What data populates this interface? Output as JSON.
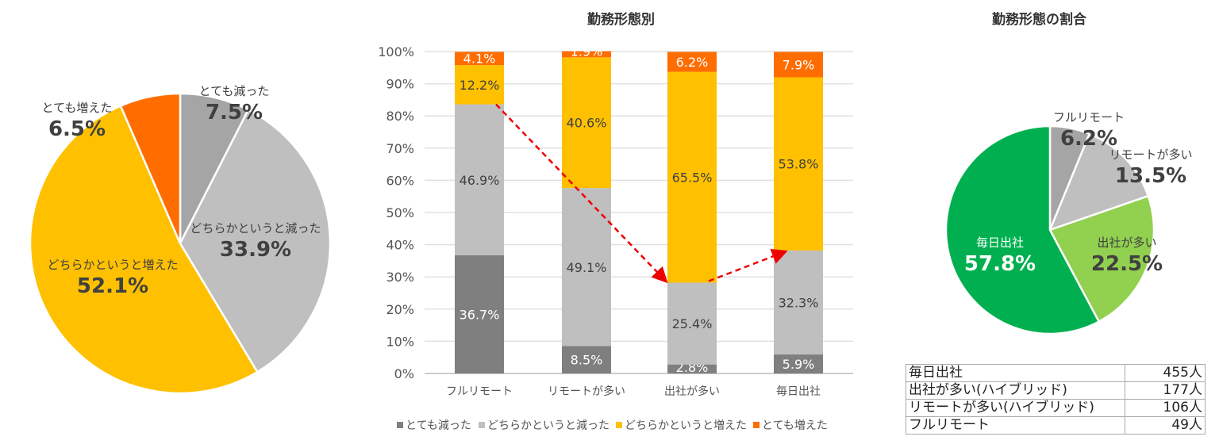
{
  "chart_data": [
    {
      "type": "pie",
      "title": "",
      "labels": [
        "とても減った",
        "どちらかというと減った",
        "どちらかというと増えた",
        "とても増えた"
      ],
      "values": [
        7.5,
        33.9,
        52.1,
        6.5
      ],
      "value_labels": [
        "7.5%",
        "33.9%",
        "52.1%",
        "6.5%"
      ],
      "colors": [
        "#a5a5a5",
        "#bfbfbf",
        "#ffc000",
        "#ff6d01"
      ]
    },
    {
      "type": "bar",
      "stacked": true,
      "title": "勤務形態別",
      "categories": [
        "フルリモート",
        "リモートが多い",
        "出社が多い",
        "毎日出社"
      ],
      "ylim": [
        0,
        100
      ],
      "yticks": [
        "0%",
        "10%",
        "20%",
        "30%",
        "40%",
        "50%",
        "60%",
        "70%",
        "80%",
        "90%",
        "100%"
      ],
      "legend_position": "bottom",
      "series": [
        {
          "name": "とても減った",
          "color": "#7f7f7f",
          "label_color": "#ffffff",
          "values": [
            36.7,
            8.5,
            2.8,
            5.9
          ]
        },
        {
          "name": "どちらかというと減った",
          "color": "#bfbfbf",
          "label_color": "#404040",
          "values": [
            46.9,
            49.1,
            25.4,
            32.3
          ]
        },
        {
          "name": "どちらかというと増えた",
          "color": "#ffc000",
          "label_color": "#404040",
          "values": [
            12.2,
            40.6,
            65.5,
            53.8
          ]
        },
        {
          "name": "とても増えた",
          "color": "#ff6d01",
          "label_color": "#ffffff",
          "values": [
            4.1,
            1.9,
            6.2,
            7.9
          ]
        }
      ],
      "annotation": "red dashed arrows connecting tops of the 減った segments"
    },
    {
      "type": "pie",
      "title": "勤務形態の割合",
      "labels": [
        "フルリモート",
        "リモートが多い",
        "出社が多い",
        "毎日出社"
      ],
      "values": [
        6.2,
        13.5,
        22.5,
        57.8
      ],
      "value_labels": [
        "6.2%",
        "13.5%",
        "22.5%",
        "57.8%"
      ],
      "colors": [
        "#a5a5a5",
        "#bfbfbf",
        "#92d050",
        "#00b050"
      ]
    }
  ],
  "table": {
    "rows": [
      {
        "label": "毎日出社",
        "count": "455人"
      },
      {
        "label": "出社が多い(ハイブリッド)",
        "count": "177人"
      },
      {
        "label": "リモートが多い(ハイブリッド)",
        "count": "106人"
      },
      {
        "label": "フルリモート",
        "count": "49人"
      }
    ]
  }
}
